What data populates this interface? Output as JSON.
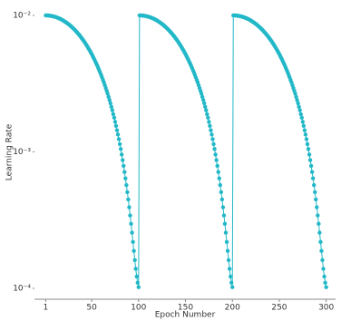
{
  "chart_data": {
    "type": "line",
    "xlabel": "Epoch Number",
    "ylabel": "Learning Rate",
    "color": "#22b8c8",
    "log_y": true,
    "xlim": [
      -11,
      310
    ],
    "xticks": [
      1,
      50,
      100,
      150,
      200,
      250,
      300
    ],
    "ylim": [
      0.0001,
      0.01
    ],
    "yticks": [
      {
        "value": 0.01,
        "label": "10⁻²"
      },
      {
        "value": 0.001,
        "label": "10⁻³"
      },
      {
        "value": 0.0001,
        "label": "10⁻⁴"
      }
    ],
    "x": [
      1,
      2,
      3,
      4,
      5,
      6,
      7,
      8,
      9,
      10,
      11,
      12,
      13,
      14,
      15,
      16,
      17,
      18,
      19,
      20,
      21,
      22,
      23,
      24,
      25,
      26,
      27,
      28,
      29,
      30,
      31,
      32,
      33,
      34,
      35,
      36,
      37,
      38,
      39,
      40,
      41,
      42,
      43,
      44,
      45,
      46,
      47,
      48,
      49,
      50,
      51,
      52,
      53,
      54,
      55,
      56,
      57,
      58,
      59,
      60,
      61,
      62,
      63,
      64,
      65,
      66,
      67,
      68,
      69,
      70,
      71,
      72,
      73,
      74,
      75,
      76,
      77,
      78,
      79,
      80,
      81,
      82,
      83,
      84,
      85,
      86,
      87,
      88,
      89,
      90,
      91,
      92,
      93,
      94,
      95,
      96,
      97,
      98,
      99,
      100,
      101,
      102,
      103,
      104,
      105,
      106,
      107,
      108,
      109,
      110,
      111,
      112,
      113,
      114,
      115,
      116,
      117,
      118,
      119,
      120,
      121,
      122,
      123,
      124,
      125,
      126,
      127,
      128,
      129,
      130,
      131,
      132,
      133,
      134,
      135,
      136,
      137,
      138,
      139,
      140,
      141,
      142,
      143,
      144,
      145,
      146,
      147,
      148,
      149,
      150,
      151,
      152,
      153,
      154,
      155,
      156,
      157,
      158,
      159,
      160,
      161,
      162,
      163,
      164,
      165,
      166,
      167,
      168,
      169,
      170,
      171,
      172,
      173,
      174,
      175,
      176,
      177,
      178,
      179,
      180,
      181,
      182,
      183,
      184,
      185,
      186,
      187,
      188,
      189,
      190,
      191,
      192,
      193,
      194,
      195,
      196,
      197,
      198,
      199,
      200,
      201,
      202,
      203,
      204,
      205,
      206,
      207,
      208,
      209,
      210,
      211,
      212,
      213,
      214,
      215,
      216,
      217,
      218,
      219,
      220,
      221,
      222,
      223,
      224,
      225,
      226,
      227,
      228,
      229,
      230,
      231,
      232,
      233,
      234,
      235,
      236,
      237,
      238,
      239,
      240,
      241,
      242,
      243,
      244,
      245,
      246,
      247,
      248,
      249,
      250,
      251,
      252,
      253,
      254,
      255,
      256,
      257,
      258,
      259,
      260,
      261,
      262,
      263,
      264,
      265,
      266,
      267,
      268,
      269,
      270,
      271,
      272,
      273,
      274,
      275,
      276,
      277,
      278,
      279,
      280,
      281,
      282,
      283,
      284,
      285,
      286,
      287,
      288,
      289,
      290,
      291,
      292,
      293,
      294,
      295,
      296,
      297,
      298,
      299,
      300
    ],
    "values": [
      0.01,
      0.01,
      0.00999,
      0.00998,
      0.00996,
      0.00994,
      0.00991,
      0.00988,
      0.00984,
      0.0098,
      0.00976,
      0.00971,
      0.00965,
      0.00959,
      0.00953,
      0.00946,
      0.00939,
      0.00931,
      0.00923,
      0.00914,
      0.00905,
      0.00896,
      0.00886,
      0.00876,
      0.00866,
      0.00855,
      0.00844,
      0.00832,
      0.00821,
      0.00808,
      0.00796,
      0.00783,
      0.0077,
      0.00757,
      0.00743,
      0.0073,
      0.00716,
      0.00702,
      0.00687,
      0.00673,
      0.00658,
      0.00643,
      0.00628,
      0.00613,
      0.00598,
      0.00582,
      0.00567,
      0.00552,
      0.00536,
      0.00521,
      0.00505,
      0.00489,
      0.00474,
      0.00458,
      0.00443,
      0.00428,
      0.00412,
      0.00397,
      0.00382,
      0.00367,
      0.00352,
      0.00337,
      0.00323,
      0.00308,
      0.00294,
      0.0028,
      0.00267,
      0.00253,
      0.0024,
      0.00227,
      0.00214,
      0.00202,
      0.00189,
      0.00178,
      0.00166,
      0.00155,
      0.00144,
      0.00134,
      0.00124,
      0.00114,
      0.00105,
      0.000956,
      0.000871,
      0.000789,
      0.000712,
      0.00064,
      0.000571,
      0.000507,
      0.000448,
      0.000393,
      0.000342,
      0.000297,
      0.000256,
      0.000219,
      0.000188,
      0.000161,
      0.000139,
      0.000122,
      0.00011,
      0.000102,
      0.01,
      0.01,
      0.00999,
      0.00998,
      0.00996,
      0.00994,
      0.00991,
      0.00988,
      0.00984,
      0.0098,
      0.00976,
      0.00971,
      0.00965,
      0.00959,
      0.00953,
      0.00946,
      0.00939,
      0.00931,
      0.00923,
      0.00914,
      0.00905,
      0.00896,
      0.00886,
      0.00876,
      0.00866,
      0.00855,
      0.00844,
      0.00832,
      0.00821,
      0.00808,
      0.00796,
      0.00783,
      0.0077,
      0.00757,
      0.00743,
      0.0073,
      0.00716,
      0.00702,
      0.00687,
      0.00673,
      0.00658,
      0.00643,
      0.00628,
      0.00613,
      0.00598,
      0.00582,
      0.00567,
      0.00552,
      0.00536,
      0.00521,
      0.00505,
      0.00489,
      0.00474,
      0.00458,
      0.00443,
      0.00428,
      0.00412,
      0.00397,
      0.00382,
      0.00367,
      0.00352,
      0.00337,
      0.00323,
      0.00308,
      0.00294,
      0.0028,
      0.00267,
      0.00253,
      0.0024,
      0.00227,
      0.00214,
      0.00202,
      0.00189,
      0.00178,
      0.00166,
      0.00155,
      0.00144,
      0.00134,
      0.00124,
      0.00114,
      0.00105,
      0.000956,
      0.000871,
      0.000789,
      0.000712,
      0.00064,
      0.000571,
      0.000507,
      0.000448,
      0.000393,
      0.000342,
      0.000297,
      0.000256,
      0.000219,
      0.000188,
      0.000161,
      0.000139,
      0.000122,
      0.00011,
      0.000102,
      0.01,
      0.01,
      0.00999,
      0.00998,
      0.00996,
      0.00994,
      0.00991,
      0.00988,
      0.00984,
      0.0098,
      0.00976,
      0.00971,
      0.00965,
      0.00959,
      0.00953,
      0.00946,
      0.00939,
      0.00931,
      0.00923,
      0.00914,
      0.00905,
      0.00896,
      0.00886,
      0.00876,
      0.00866,
      0.00855,
      0.00844,
      0.00832,
      0.00821,
      0.00808,
      0.00796,
      0.00783,
      0.0077,
      0.00757,
      0.00743,
      0.0073,
      0.00716,
      0.00702,
      0.00687,
      0.00673,
      0.00658,
      0.00643,
      0.00628,
      0.00613,
      0.00598,
      0.00582,
      0.00567,
      0.00552,
      0.00536,
      0.00521,
      0.00505,
      0.00489,
      0.00474,
      0.00458,
      0.00443,
      0.00428,
      0.00412,
      0.00397,
      0.00382,
      0.00367,
      0.00352,
      0.00337,
      0.00323,
      0.00308,
      0.00294,
      0.0028,
      0.00267,
      0.00253,
      0.0024,
      0.00227,
      0.00214,
      0.00202,
      0.00189,
      0.00178,
      0.00166,
      0.00155,
      0.00144,
      0.00134,
      0.00124,
      0.00114,
      0.00105,
      0.000956,
      0.000871,
      0.000789,
      0.000712,
      0.00064,
      0.000571,
      0.000507,
      0.000448,
      0.000393,
      0.000342,
      0.000297,
      0.000256,
      0.000219,
      0.000188,
      0.000161,
      0.000139,
      0.000122,
      0.00011,
      0.000102
    ]
  }
}
